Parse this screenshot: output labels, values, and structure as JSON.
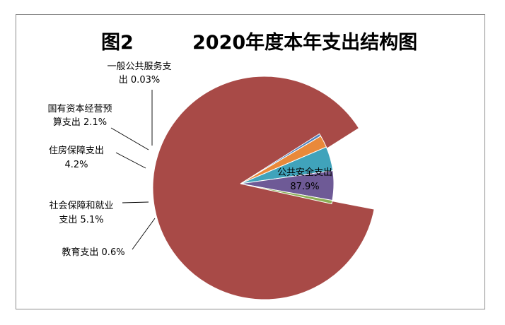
{
  "figure_number": "图2",
  "chart_data": {
    "type": "pie",
    "title": "2020年度本年支出结构图",
    "categories": [
      "公共安全支出",
      "一般公共服务支出",
      "国有资本经营预算支出",
      "住房保障支出",
      "社会保障和就业支出",
      "教育支出"
    ],
    "values": [
      87.9,
      0.03,
      2.1,
      4.2,
      5.1,
      0.6
    ],
    "unit": "%",
    "colors": [
      "#A84A47",
      "#4F81BD",
      "#E9893A",
      "#40A3BB",
      "#6E5A96",
      "#8BAE55"
    ],
    "data_labels": [
      {
        "lines": [
          "公共安全支出",
          "87.9%"
        ]
      },
      {
        "lines": [
          "一般公共服务支",
          "出 0.03%"
        ]
      },
      {
        "lines": [
          "国有资本经营预",
          "算支出 2.1%"
        ]
      },
      {
        "lines": [
          "住房保障支出",
          "4.2%"
        ]
      },
      {
        "lines": [
          "社会保障和就业",
          "支出 5.1%"
        ]
      },
      {
        "lines": [
          "教育支出 0.6%"
        ]
      }
    ]
  }
}
